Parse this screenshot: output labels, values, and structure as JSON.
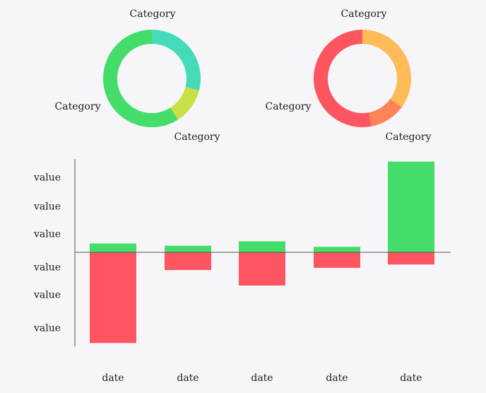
{
  "chart_data": [
    {
      "type": "pie",
      "variant": "donut",
      "slices": [
        {
          "label": "Category",
          "value": 29,
          "color": "#45dbb8"
        },
        {
          "label": "Category",
          "value": 12,
          "color": "#c8df45"
        },
        {
          "label": "Category",
          "value": 59,
          "color": "#44dd6a"
        }
      ]
    },
    {
      "type": "pie",
      "variant": "donut",
      "slices": [
        {
          "label": "Category",
          "value": 35,
          "color": "#ffbb57"
        },
        {
          "label": "Category",
          "value": 12,
          "color": "#ff8457"
        },
        {
          "label": "Category",
          "value": 53,
          "color": "#ff5560"
        }
      ]
    },
    {
      "type": "bar",
      "stacked": true,
      "categories": [
        "date",
        "date",
        "date",
        "date",
        "date"
      ],
      "series": [
        {
          "values": [
            0.4,
            0.3,
            0.5,
            0.25,
            4.1
          ],
          "color": "#44dd6a"
        },
        {
          "values": [
            -4.1,
            -0.8,
            -1.5,
            -0.7,
            -0.55
          ],
          "color": "#ff5560"
        }
      ],
      "yticks": [
        {
          "value": 3.4,
          "label": "value"
        },
        {
          "value": 2.1,
          "label": "value"
        },
        {
          "value": 0.85,
          "label": "value"
        },
        {
          "value": -0.65,
          "label": "value"
        },
        {
          "value": -1.9,
          "label": "value"
        },
        {
          "value": -3.4,
          "label": "value"
        }
      ],
      "ylim": [
        -4.2,
        4.3
      ],
      "grid": false,
      "zero_line": true
    }
  ]
}
